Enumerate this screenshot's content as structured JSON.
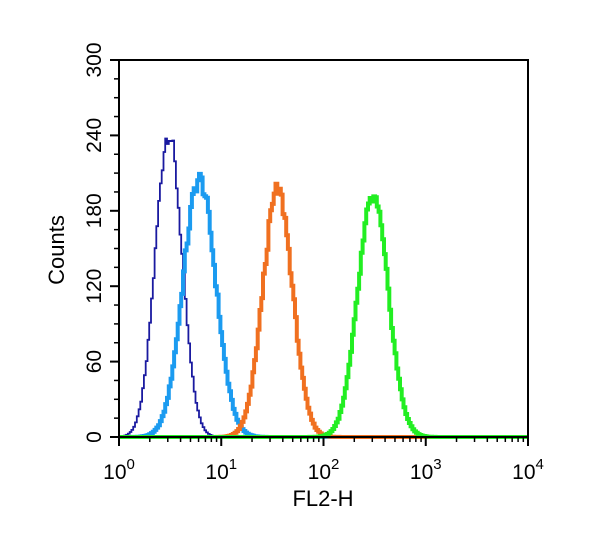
{
  "chart_data": {
    "type": "line",
    "title": "",
    "xlabel": "FL2-H",
    "ylabel": "Counts",
    "x_scale": "log",
    "xlim": [
      1,
      10000
    ],
    "ylim": [
      0,
      300
    ],
    "x_ticks": [
      {
        "value": 1,
        "base": "10",
        "exp": "0"
      },
      {
        "value": 10,
        "base": "10",
        "exp": "1"
      },
      {
        "value": 100,
        "base": "10",
        "exp": "2"
      },
      {
        "value": 1000,
        "base": "10",
        "exp": "3"
      },
      {
        "value": 10000,
        "base": "10",
        "exp": "4"
      }
    ],
    "y_ticks": [
      {
        "value": 0,
        "label": "0"
      },
      {
        "value": 60,
        "label": "60"
      },
      {
        "value": 120,
        "label": "120"
      },
      {
        "value": 180,
        "label": "180"
      },
      {
        "value": 240,
        "label": "240"
      },
      {
        "value": 300,
        "label": "300"
      }
    ],
    "grid": false,
    "legend": "none",
    "series": [
      {
        "color": "#1a1aa0",
        "peak_x": 3.0,
        "peak_y": 242,
        "log_sigma": 0.13,
        "stroke": "thin",
        "x": [
          1.0,
          1.3,
          1.6,
          2.0,
          2.4,
          2.7,
          3.0,
          3.3,
          3.7,
          4.2,
          5.0,
          6.0,
          7.5,
          10.0
        ],
        "y": [
          2,
          12,
          45,
          120,
          200,
          232,
          242,
          230,
          190,
          120,
          50,
          15,
          3,
          0
        ]
      },
      {
        "color": "#1b9bf0",
        "peak_x": 6.0,
        "peak_y": 205,
        "log_sigma": 0.16,
        "stroke": "thick",
        "x": [
          1.5,
          2.5,
          3.3,
          4.0,
          4.8,
          5.5,
          6.0,
          6.8,
          8.0,
          9.5,
          11.5,
          15.0,
          20.0,
          30.0
        ],
        "y": [
          0,
          5,
          40,
          110,
          170,
          198,
          205,
          195,
          155,
          95,
          45,
          12,
          2,
          0
        ]
      },
      {
        "color": "#f07020",
        "peak_x": 35,
        "peak_y": 196,
        "log_sigma": 0.145,
        "stroke": "thick",
        "x": [
          10,
          14,
          18,
          22,
          27,
          32,
          35,
          40,
          48,
          58,
          70,
          90,
          120
        ],
        "y": [
          0,
          8,
          40,
          100,
          165,
          192,
          196,
          185,
          140,
          80,
          30,
          6,
          0
        ]
      },
      {
        "color": "#22ee22",
        "peak_x": 300,
        "peak_y": 190,
        "log_sigma": 0.15,
        "stroke": "thick",
        "x": [
          60,
          100,
          140,
          180,
          230,
          280,
          300,
          340,
          420,
          520,
          650,
          850,
          1200,
          2000,
          10000
        ],
        "y": [
          0,
          10,
          45,
          110,
          165,
          188,
          190,
          180,
          140,
          80,
          30,
          8,
          2,
          1,
          0
        ]
      }
    ]
  }
}
